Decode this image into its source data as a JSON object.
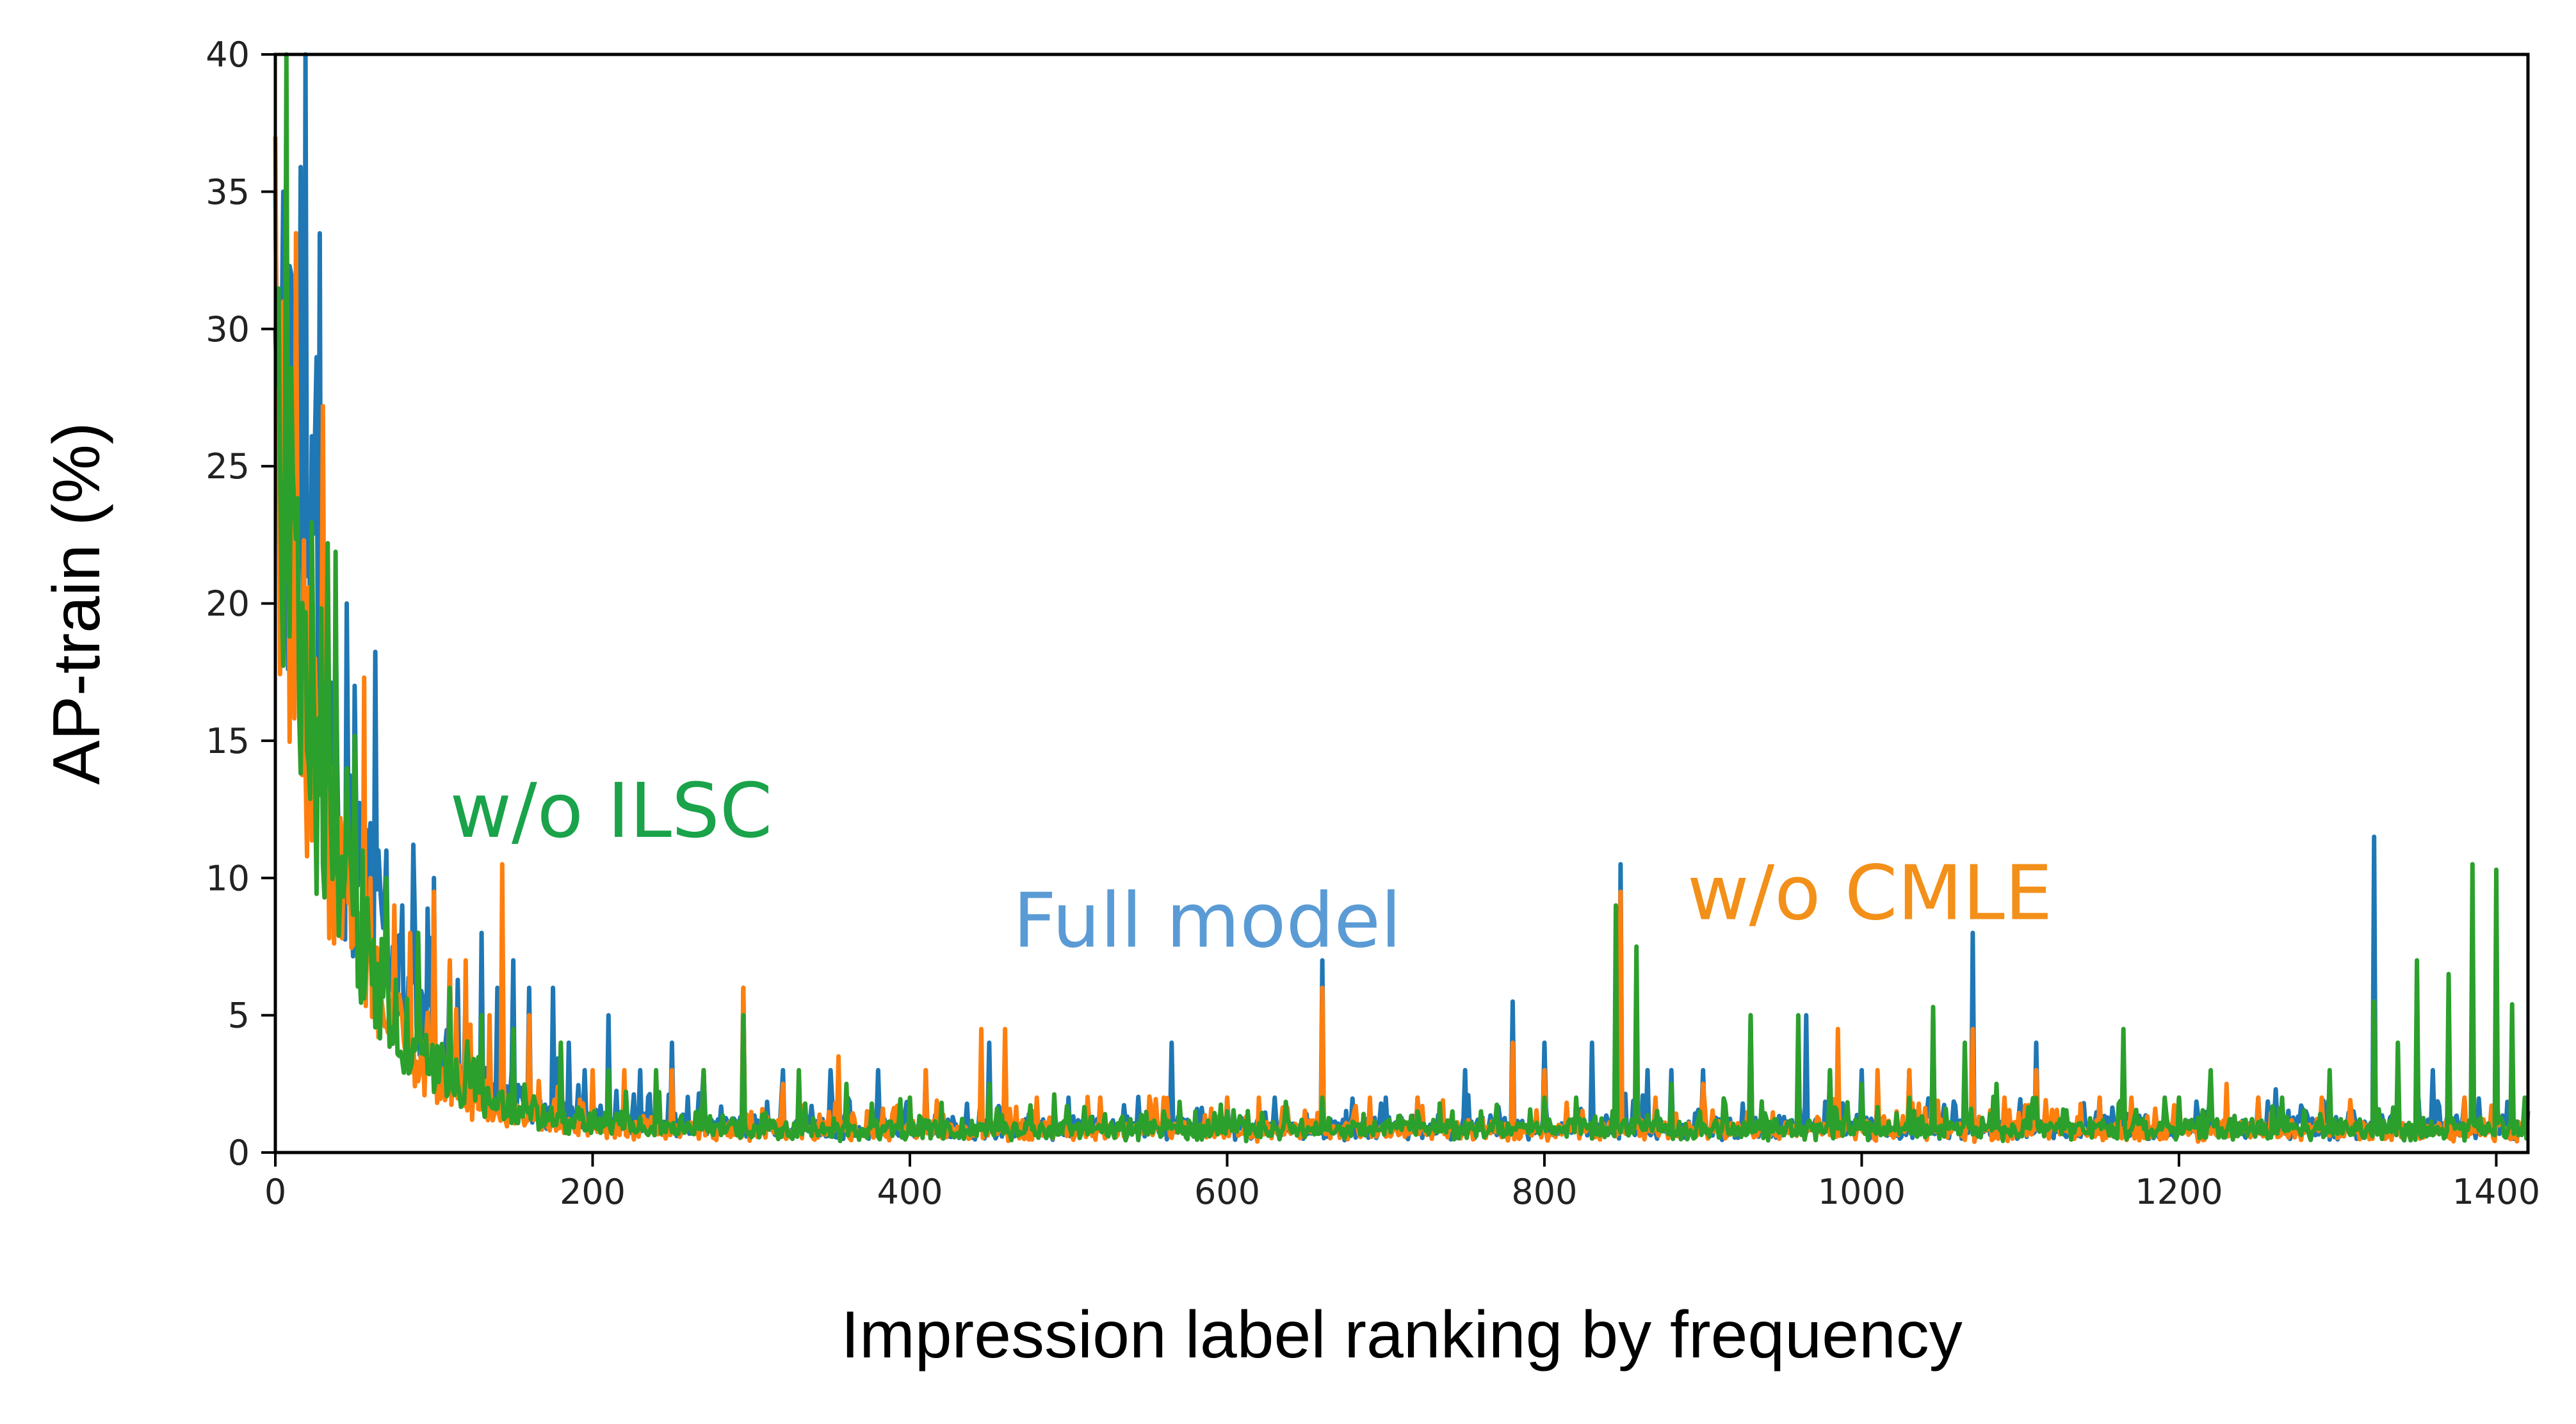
{
  "chart_data": {
    "type": "line",
    "title": "",
    "xlabel": "Impression label ranking by frequency",
    "ylabel": "AP-train (%)",
    "xlim": [
      0,
      1420
    ],
    "ylim": [
      0,
      40
    ],
    "x_ticks": [
      0,
      200,
      400,
      600,
      800,
      1000,
      1200,
      1400
    ],
    "x_tick_labels": [
      "0",
      "200",
      "400",
      "600",
      "800",
      "1000",
      "1200",
      "1400"
    ],
    "y_ticks": [
      0,
      5,
      10,
      15,
      20,
      25,
      30,
      35,
      40
    ],
    "y_tick_labels": [
      "0",
      "5",
      "10",
      "15",
      "20",
      "25",
      "30",
      "35",
      "40"
    ],
    "grid": false,
    "legend": "none",
    "annotations": [
      {
        "text": "w/o ILSC",
        "x": 110,
        "y": 11.5,
        "color": "#1aa34a"
      },
      {
        "text": "Full model",
        "x": 465,
        "y": 7.5,
        "color": "#5b9bd5"
      },
      {
        "text": "w/o CMLE",
        "x": 890,
        "y": 8.5,
        "color": "#f39019"
      }
    ],
    "series": [
      {
        "color": "#1f77b4",
        "baseline": {
          "a": 29,
          "tau": 45,
          "c": 0.9,
          "noise": 0.35
        },
        "spikes": [
          [
            0,
            35
          ],
          [
            5,
            35
          ],
          [
            10,
            32
          ],
          [
            15,
            25
          ],
          [
            20,
            21
          ],
          [
            25,
            26
          ],
          [
            30,
            20
          ],
          [
            38,
            20
          ],
          [
            45,
            20
          ],
          [
            50,
            17
          ],
          [
            60,
            12
          ],
          [
            65,
            11
          ],
          [
            70,
            11
          ],
          [
            80,
            9
          ],
          [
            90,
            8
          ],
          [
            100,
            10
          ],
          [
            110,
            7
          ],
          [
            120,
            6
          ],
          [
            130,
            8
          ],
          [
            140,
            6
          ],
          [
            150,
            7
          ],
          [
            160,
            6
          ],
          [
            175,
            6
          ],
          [
            185,
            4
          ],
          [
            195,
            3
          ],
          [
            210,
            5
          ],
          [
            230,
            3
          ],
          [
            250,
            4
          ],
          [
            270,
            3
          ],
          [
            295,
            6
          ],
          [
            320,
            3
          ],
          [
            350,
            3
          ],
          [
            380,
            3
          ],
          [
            410,
            3
          ],
          [
            450,
            4
          ],
          [
            460,
            4
          ],
          [
            500,
            2
          ],
          [
            520,
            2
          ],
          [
            565,
            4
          ],
          [
            600,
            2
          ],
          [
            630,
            2
          ],
          [
            660,
            7
          ],
          [
            700,
            2
          ],
          [
            720,
            2
          ],
          [
            750,
            3
          ],
          [
            780,
            5.5
          ],
          [
            800,
            4
          ],
          [
            830,
            4
          ],
          [
            848,
            10.5
          ],
          [
            865,
            3
          ],
          [
            880,
            3
          ],
          [
            900,
            3
          ],
          [
            930,
            5
          ],
          [
            965,
            5
          ],
          [
            980,
            3
          ],
          [
            1000,
            3
          ],
          [
            1030,
            3
          ],
          [
            1045,
            5
          ],
          [
            1070,
            8
          ],
          [
            1110,
            4
          ],
          [
            1150,
            2
          ],
          [
            1200,
            2
          ],
          [
            1250,
            2
          ],
          [
            1280,
            1.5
          ],
          [
            1310,
            1.5
          ],
          [
            1323,
            11.5
          ],
          [
            1360,
            3
          ],
          [
            1380,
            2
          ],
          [
            1400,
            1.5
          ]
        ]
      },
      {
        "color": "#ff7f0e",
        "baseline": {
          "a": 25,
          "tau": 40,
          "c": 0.8,
          "noise": 0.3
        },
        "spikes": [
          [
            0,
            37
          ],
          [
            5,
            31
          ],
          [
            10,
            24
          ],
          [
            15,
            17
          ],
          [
            25,
            18
          ],
          [
            35,
            14
          ],
          [
            45,
            12
          ],
          [
            60,
            10
          ],
          [
            75,
            9
          ],
          [
            85,
            8
          ],
          [
            100,
            9.5
          ],
          [
            110,
            7
          ],
          [
            120,
            7
          ],
          [
            135,
            5
          ],
          [
            143,
            10.5
          ],
          [
            160,
            5
          ],
          [
            180,
            4
          ],
          [
            200,
            3
          ],
          [
            220,
            3
          ],
          [
            250,
            3
          ],
          [
            270,
            3
          ],
          [
            295,
            6
          ],
          [
            320,
            2.5
          ],
          [
            355,
            3.5
          ],
          [
            400,
            2
          ],
          [
            410,
            3
          ],
          [
            445,
            4.5
          ],
          [
            460,
            4.5
          ],
          [
            480,
            2
          ],
          [
            520,
            2
          ],
          [
            560,
            2
          ],
          [
            600,
            2
          ],
          [
            620,
            2
          ],
          [
            660,
            6
          ],
          [
            690,
            2
          ],
          [
            720,
            2
          ],
          [
            780,
            4
          ],
          [
            800,
            3
          ],
          [
            848,
            9.5
          ],
          [
            870,
            2
          ],
          [
            900,
            2.5
          ],
          [
            930,
            4.5
          ],
          [
            960,
            3
          ],
          [
            985,
            4.5
          ],
          [
            1010,
            3
          ],
          [
            1030,
            3
          ],
          [
            1045,
            3
          ],
          [
            1070,
            4.5
          ],
          [
            1090,
            2
          ],
          [
            1110,
            3
          ],
          [
            1150,
            2
          ],
          [
            1170,
            2
          ],
          [
            1200,
            2
          ],
          [
            1230,
            2.5
          ],
          [
            1250,
            2
          ],
          [
            1290,
            2
          ],
          [
            1323,
            5.5
          ],
          [
            1350,
            2
          ],
          [
            1380,
            2
          ]
        ]
      },
      {
        "color": "#2ca02c",
        "baseline": {
          "a": 25,
          "tau": 42,
          "c": 0.85,
          "noise": 0.3
        },
        "spikes": [
          [
            0,
            30
          ],
          [
            3,
            25
          ],
          [
            8,
            22
          ],
          [
            15,
            16
          ],
          [
            25,
            14
          ],
          [
            35,
            12
          ],
          [
            45,
            14
          ],
          [
            55,
            11
          ],
          [
            70,
            10
          ],
          [
            90,
            8
          ],
          [
            110,
            6
          ],
          [
            130,
            5
          ],
          [
            150,
            4.5
          ],
          [
            180,
            4
          ],
          [
            210,
            3
          ],
          [
            240,
            3
          ],
          [
            270,
            3
          ],
          [
            295,
            5
          ],
          [
            330,
            3
          ],
          [
            360,
            2.5
          ],
          [
            400,
            2
          ],
          [
            450,
            2.5
          ],
          [
            500,
            1.5
          ],
          [
            560,
            1.5
          ],
          [
            600,
            1.5
          ],
          [
            660,
            2
          ],
          [
            720,
            1.5
          ],
          [
            760,
            1.5
          ],
          [
            800,
            2
          ],
          [
            820,
            2
          ],
          [
            845,
            9
          ],
          [
            858,
            7.5
          ],
          [
            880,
            2.5
          ],
          [
            930,
            5
          ],
          [
            960,
            5
          ],
          [
            980,
            3
          ],
          [
            1000,
            2.5
          ],
          [
            1030,
            2
          ],
          [
            1045,
            5.3
          ],
          [
            1065,
            4
          ],
          [
            1085,
            2.5
          ],
          [
            1110,
            2
          ],
          [
            1165,
            4.5
          ],
          [
            1200,
            2
          ],
          [
            1220,
            3
          ],
          [
            1265,
            2
          ],
          [
            1295,
            3
          ],
          [
            1323,
            5.5
          ],
          [
            1338,
            4
          ],
          [
            1350,
            7
          ],
          [
            1370,
            6.5
          ],
          [
            1385,
            10.5
          ],
          [
            1400,
            10.3
          ],
          [
            1410,
            5.4
          ],
          [
            1418,
            2
          ]
        ]
      }
    ]
  }
}
